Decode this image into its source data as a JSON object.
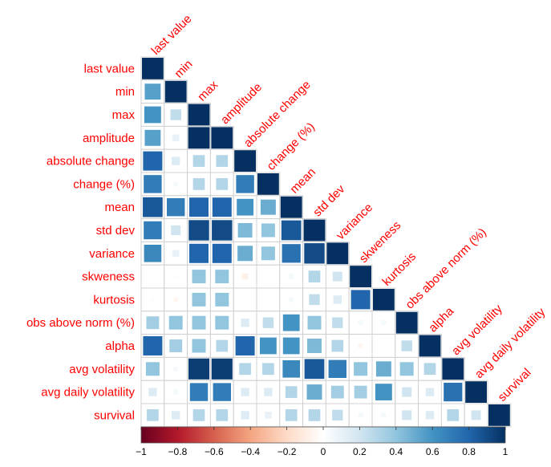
{
  "chart_data": {
    "type": "heatmap",
    "layout": "lower-triangular correlation plot",
    "label_color": "#ff0000",
    "variables": [
      "last value",
      "min",
      "max",
      "amplitude",
      "absolute change",
      "change (%)",
      "mean",
      "std dev",
      "variance",
      "skweness",
      "kurtosis",
      "obs above norm (%)",
      "alpha",
      "avg volatility",
      "avg daily volatility",
      "survival"
    ],
    "matrix": [
      [
        1
      ],
      [
        0.55,
        1
      ],
      [
        0.6,
        0.25,
        1
      ],
      [
        0.55,
        0.1,
        1,
        1
      ],
      [
        0.8,
        0.15,
        0.3,
        0.3,
        1
      ],
      [
        0.7,
        0.05,
        0.3,
        0.3,
        0.7,
        1
      ],
      [
        0.85,
        0.7,
        0.8,
        0.8,
        0.6,
        0.5,
        1
      ],
      [
        0.7,
        0.2,
        0.9,
        0.9,
        0.45,
        0.4,
        0.85,
        1
      ],
      [
        0.65,
        0.1,
        0.8,
        0.8,
        0.5,
        0.4,
        0.75,
        0.9,
        1
      ],
      [
        0.0,
        0.02,
        0.4,
        0.4,
        -0.08,
        0.0,
        0.05,
        0.3,
        0.2,
        1
      ],
      [
        0.02,
        -0.05,
        0.4,
        0.4,
        0.0,
        0.0,
        0.05,
        0.25,
        0.15,
        0.8,
        1
      ],
      [
        0.35,
        0.4,
        0.4,
        0.4,
        0.15,
        0.25,
        0.6,
        0.4,
        0.25,
        0.05,
        0.05,
        1
      ],
      [
        0.8,
        0.35,
        0.4,
        0.3,
        0.8,
        0.6,
        0.6,
        0.45,
        0.3,
        -0.05,
        0.0,
        0.25,
        1
      ],
      [
        0.4,
        0.05,
        0.95,
        0.95,
        0.3,
        0.3,
        0.65,
        0.85,
        0.7,
        0.4,
        0.5,
        0.4,
        0.3,
        1
      ],
      [
        0.15,
        0.05,
        0.7,
        0.7,
        0.15,
        0.15,
        0.3,
        0.5,
        0.35,
        0.35,
        0.6,
        0.2,
        0.15,
        0.75,
        1
      ],
      [
        0.3,
        0.15,
        0.3,
        0.3,
        0.15,
        0.1,
        0.3,
        0.3,
        0.25,
        0.05,
        0.05,
        0.2,
        0.15,
        0.3,
        0.2,
        1
      ]
    ],
    "colorbar": {
      "ticks": [
        "−1",
        "−0.8",
        "−0.6",
        "−0.4",
        "−0.2",
        "0",
        "0.2",
        "0.4",
        "0.6",
        "0.8",
        "1"
      ],
      "range": [
        -1,
        1
      ],
      "colors": [
        "#67001f",
        "#b2182b",
        "#d6604d",
        "#f4a582",
        "#fddbc7",
        "#ffffff",
        "#d1e5f0",
        "#92c5de",
        "#4393c3",
        "#2166ac",
        "#053061"
      ]
    }
  }
}
